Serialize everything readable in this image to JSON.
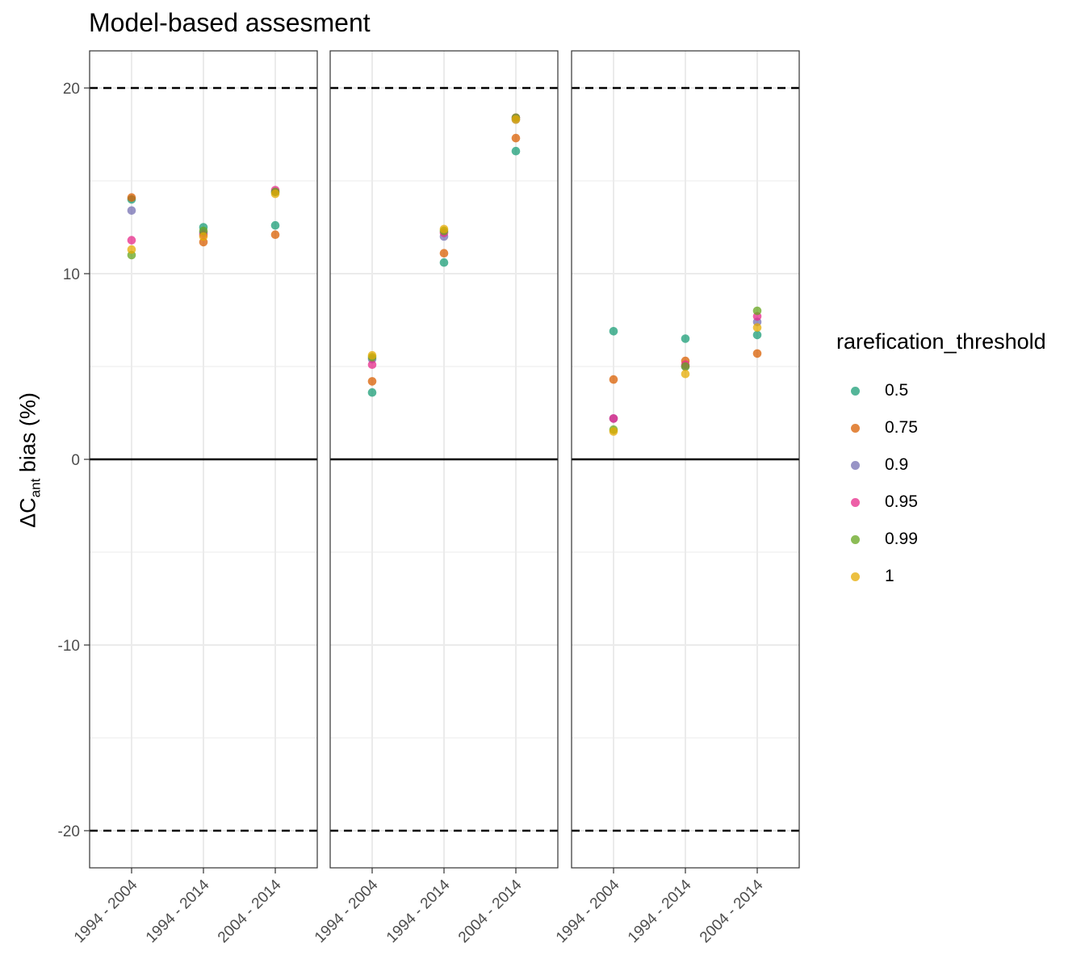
{
  "chart_data": {
    "type": "scatter",
    "title": "Model-based assesment",
    "ylabel_main": "ΔC",
    "ylabel_sub": "ant",
    "ylabel_rest": " bias (%)",
    "ylim": [
      -22,
      22
    ],
    "y_ticks": [
      -20,
      -10,
      0,
      10,
      20
    ],
    "y_tick_labels": [
      "-20",
      "-10",
      "0",
      "10",
      "20"
    ],
    "reference_lines": {
      "solid": [
        0
      ],
      "dashed": [
        -20,
        20
      ]
    },
    "categories": [
      "1994 - 2004",
      "1994 - 2014",
      "2004 - 2014"
    ],
    "legend_title": "rarefication_threshold",
    "series": [
      {
        "name": "0.5",
        "color": "#1b9e77"
      },
      {
        "name": "0.75",
        "color": "#d95f02"
      },
      {
        "name": "0.9",
        "color": "#7570b3"
      },
      {
        "name": "0.95",
        "color": "#e7298a"
      },
      {
        "name": "0.99",
        "color": "#66a61e"
      },
      {
        "name": "1",
        "color": "#e6ab02"
      }
    ],
    "panels": [
      {
        "values": {
          "0.5": [
            14.0,
            12.5,
            12.6
          ],
          "0.75": [
            14.1,
            11.7,
            12.1
          ],
          "0.9": [
            13.4,
            12.2,
            14.4
          ],
          "0.95": [
            11.8,
            12.1,
            14.5
          ],
          "0.99": [
            11.0,
            12.3,
            14.4
          ],
          "1": [
            11.3,
            12.0,
            14.3
          ]
        }
      },
      {
        "values": {
          "0.5": [
            3.6,
            10.6,
            16.6
          ],
          "0.75": [
            4.2,
            11.1,
            17.3
          ],
          "0.9": [
            5.4,
            12.0,
            18.3
          ],
          "0.95": [
            5.1,
            12.2,
            18.4
          ],
          "0.99": [
            5.5,
            12.3,
            18.4
          ],
          "1": [
            5.6,
            12.4,
            18.3
          ]
        }
      },
      {
        "values": {
          "0.5": [
            6.9,
            6.5,
            6.7
          ],
          "0.75": [
            4.3,
            5.3,
            5.7
          ],
          "0.9": [
            2.2,
            5.0,
            7.4
          ],
          "0.95": [
            2.2,
            5.1,
            7.7
          ],
          "0.99": [
            1.6,
            5.0,
            8.0
          ],
          "1": [
            1.5,
            4.6,
            7.1
          ]
        }
      }
    ]
  }
}
